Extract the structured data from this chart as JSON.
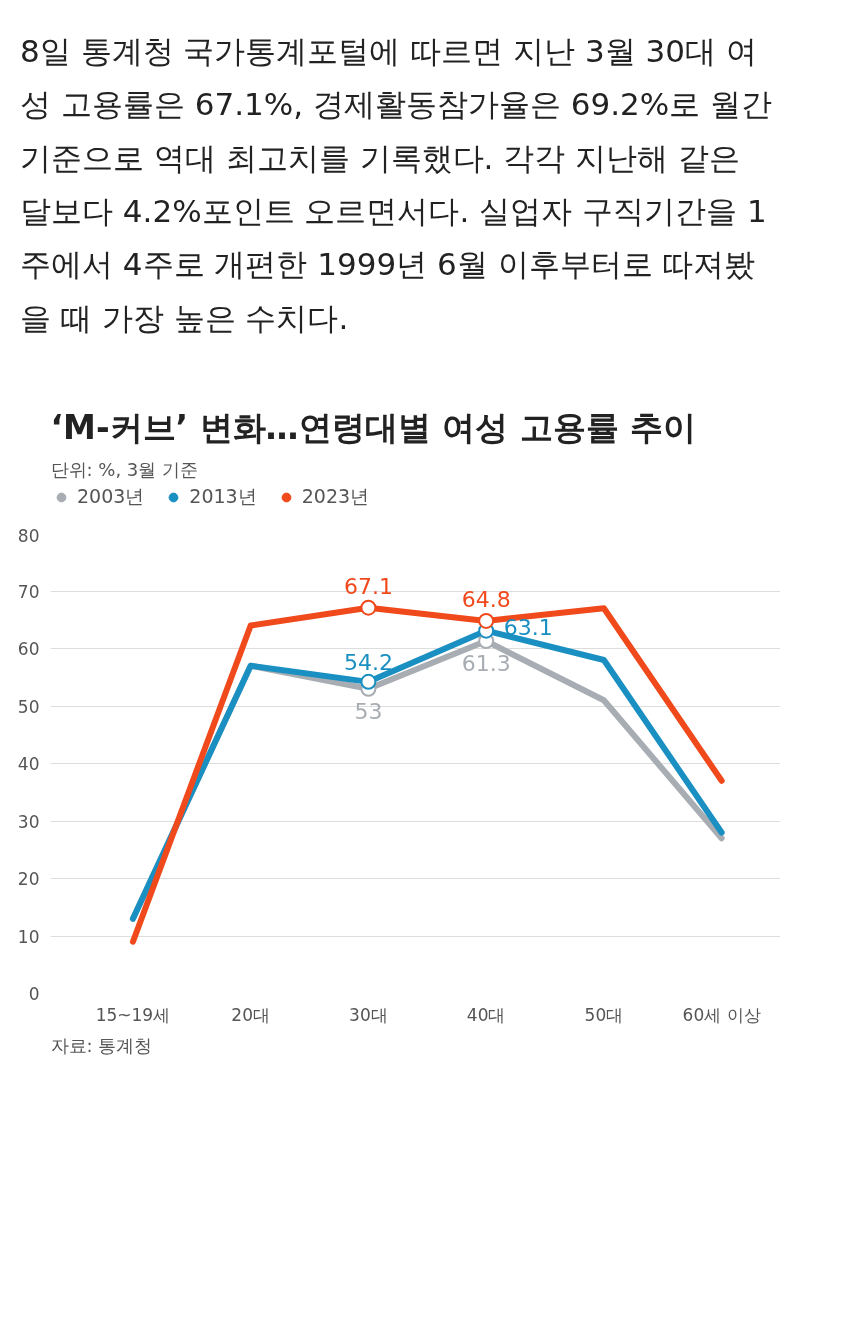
{
  "chart_data": {
    "type": "line",
    "title": "‘M-커브’ 변화…연령대별 여성 고용률 추이",
    "subtitle": "단위: %, 3월 기준",
    "categories": [
      "15~19세",
      "20대",
      "30대",
      "40대",
      "50대",
      "60세 이상"
    ],
    "series": [
      {
        "name": "2003년",
        "color": "#a7adb3",
        "values": [
          13,
          57,
          53,
          61.3,
          51,
          27
        ],
        "value_labels": [
          null,
          null,
          "53",
          "61.3",
          null,
          null
        ]
      },
      {
        "name": "2013년",
        "color": "#1a8fc1",
        "values": [
          13,
          57,
          54.2,
          63.1,
          58,
          28
        ],
        "value_labels": [
          null,
          null,
          "54.2",
          "63.1",
          null,
          null
        ]
      },
      {
        "name": "2023년",
        "color": "#f04a1c",
        "values": [
          9,
          64,
          67.1,
          64.8,
          67,
          37
        ],
        "value_labels": [
          null,
          null,
          "67.1",
          "64.8",
          null,
          null
        ]
      }
    ],
    "ylim": [
      0,
      80
    ],
    "yticks": [
      0,
      10,
      20,
      30,
      40,
      50,
      60,
      70,
      80
    ],
    "grid": "y",
    "legend": "top",
    "marker": "none",
    "line_style": "solid",
    "annotations": [
      "8일 통계청 국가통계포털에 따르면 지난 3월 30대 여성 고용률은 67.1%, 경제활동참가율은 69.2%로 월간 기준으로 역대 최고치를 기록했다. 각각 지난해 같은 달보다 4.2%포인트 오르면서다. 실업자 구직기간을 1주에서 4주로 개편한 1999년 6월 이후부터로 따져봤을 때 가장 높은 수치다.",
      "자료: 통계청"
    ]
  }
}
